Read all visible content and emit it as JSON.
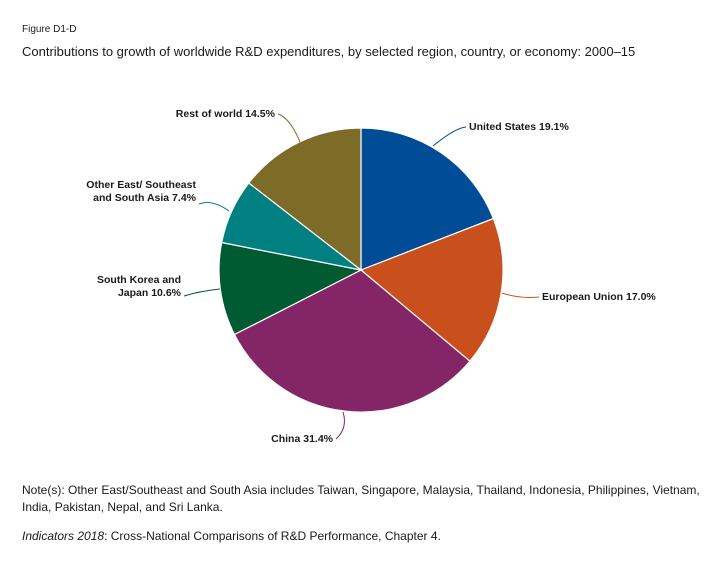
{
  "figure": {
    "label": "Figure D1-D",
    "title": "Contributions to growth of worldwide R&D expenditures, by selected region, country, or economy: 2000–15"
  },
  "chart_data": {
    "type": "pie",
    "unit": "%",
    "slices": [
      {
        "label": "United States 19.1%",
        "lines": [
          "United States 19.1%"
        ],
        "value": 19.1,
        "color": "#004c97"
      },
      {
        "label": "European Union 17.0%",
        "lines": [
          "European Union 17.0%"
        ],
        "value": 17.0,
        "color": "#c9501c"
      },
      {
        "label": "China 31.4%",
        "lines": [
          "China 31.4%"
        ],
        "value": 31.4,
        "color": "#832566"
      },
      {
        "label": "South Korea and Japan 10.6%",
        "lines": [
          "South Korea and",
          "Japan 10.6%"
        ],
        "value": 10.6,
        "color": "#005a32"
      },
      {
        "label": "Other East/ Southeast and South Asia 7.4%",
        "lines": [
          "Other East/ Southeast",
          "and South Asia 7.4%"
        ],
        "value": 7.4,
        "color": "#008080"
      },
      {
        "label": "Rest of world 14.5%",
        "lines": [
          "Rest of world 14.5%"
        ],
        "value": 14.5,
        "color": "#7d6b28"
      }
    ]
  },
  "note": "Note(s): Other East/Southeast and South Asia includes Taiwan, Singapore, Malaysia, Thailand, Indonesia, Philippines, Vietnam, India, Pakistan, Nepal, and Sri Lanka.",
  "source": {
    "italic": "Indicators 2018",
    "rest": ": Cross-National Comparisons of R&D Performance, Chapter 4."
  }
}
